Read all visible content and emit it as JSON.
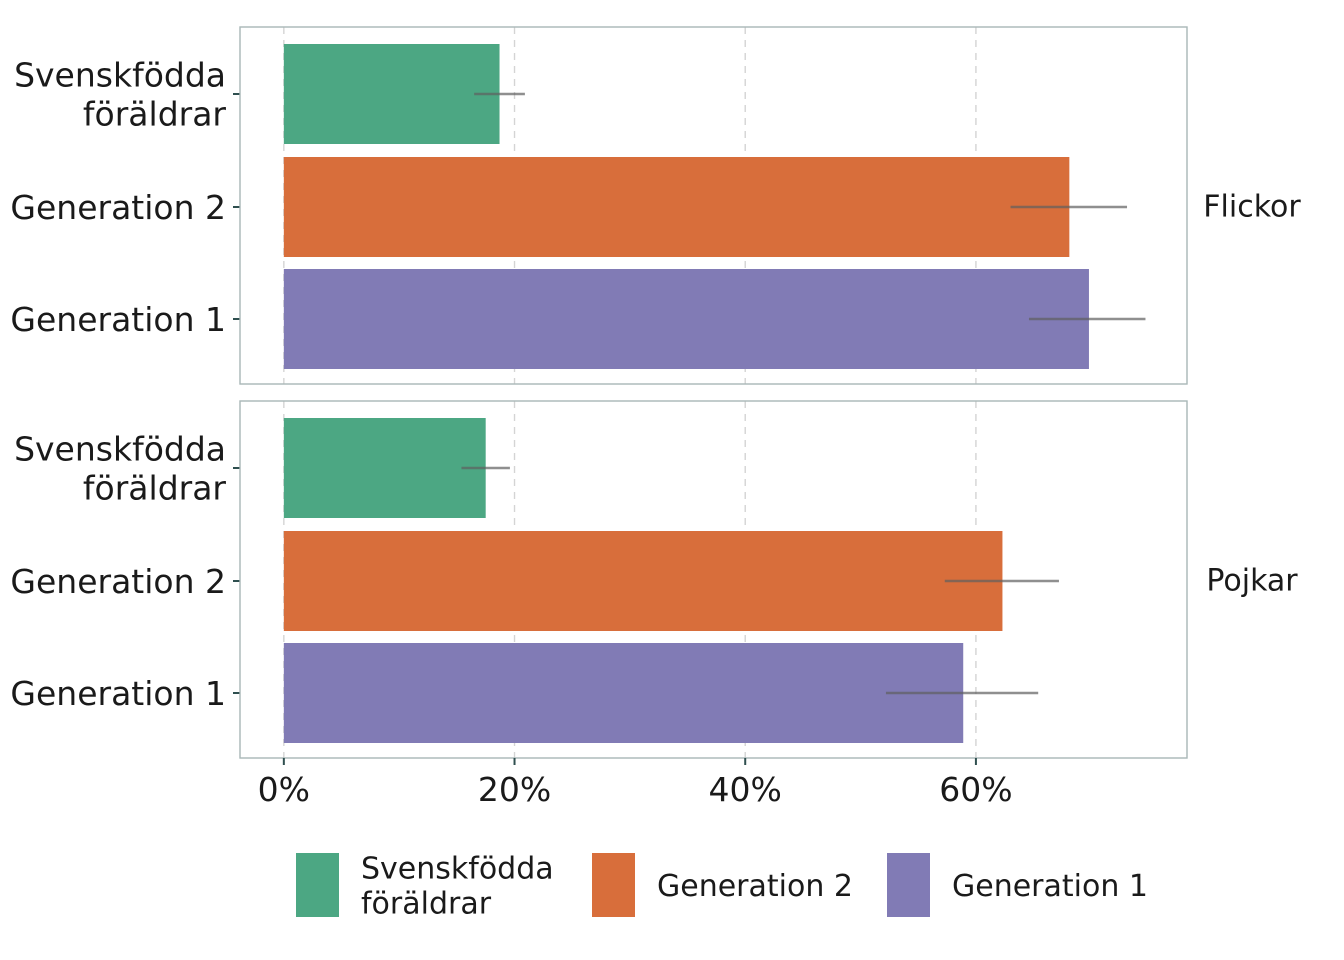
{
  "chart_data": {
    "type": "bar",
    "orientation": "horizontal",
    "x_axis": {
      "ticks": [
        0,
        20,
        40,
        60
      ],
      "tick_labels": [
        "0%",
        "20%",
        "40%",
        "60%"
      ],
      "unit": "%",
      "xlim": [
        -3.8,
        78.3
      ]
    },
    "grid": {
      "vertical": true,
      "style": "dashed"
    },
    "categories": [
      [
        "Svenskfödda",
        "föräldrar"
      ],
      [
        "Generation 2"
      ],
      [
        "Generation 1"
      ]
    ],
    "series_colors": [
      "#4ca783",
      "#d86e3b",
      "#817bb5"
    ],
    "panels": [
      {
        "label": "Flickor",
        "values": [
          18.7,
          68.1,
          69.8
        ],
        "ci_low": [
          16.5,
          63.0,
          64.6
        ],
        "ci_high": [
          20.9,
          73.1,
          74.7
        ]
      },
      {
        "label": "Pojkar",
        "values": [
          17.5,
          62.3,
          58.9
        ],
        "ci_low": [
          15.4,
          57.3,
          52.2
        ],
        "ci_high": [
          19.6,
          67.2,
          65.4
        ]
      }
    ],
    "legend": {
      "position": "bottom",
      "entries": [
        {
          "label": [
            "Svenskfödda",
            "föräldrar"
          ],
          "color": "#4ca783"
        },
        {
          "label": [
            "Generation 2"
          ],
          "color": "#d86e3b"
        },
        {
          "label": [
            "Generation 1"
          ],
          "color": "#817bb5"
        }
      ]
    }
  }
}
